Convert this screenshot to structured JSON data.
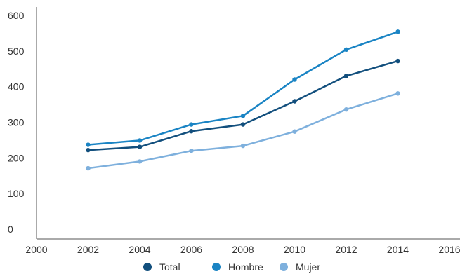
{
  "chart_data": {
    "type": "line",
    "x": [
      2002,
      2004,
      2006,
      2008,
      2010,
      2012,
      2014
    ],
    "series": [
      {
        "name": "Total",
        "color": "#124f7d",
        "values": [
          222,
          231,
          275,
          294,
          359,
          430,
          472
        ]
      },
      {
        "name": "Hombre",
        "color": "#1a84c4",
        "values": [
          237,
          249,
          294,
          318,
          420,
          504,
          554
        ]
      },
      {
        "name": "Mujer",
        "color": "#7eb0dd",
        "values": [
          171,
          190,
          220,
          234,
          274,
          336,
          381
        ]
      }
    ],
    "xlim": [
      2000,
      2016
    ],
    "ylim": [
      0,
      600
    ],
    "x_ticks": [
      "2000",
      "2002",
      "2004",
      "2006",
      "2008",
      "2010",
      "2012",
      "2014",
      "2016"
    ],
    "y_ticks": [
      "0",
      "100",
      "200",
      "300",
      "400",
      "500",
      "600"
    ],
    "grid": false,
    "legend_position": "bottom-center",
    "title": "",
    "xlabel": "",
    "ylabel": ""
  }
}
